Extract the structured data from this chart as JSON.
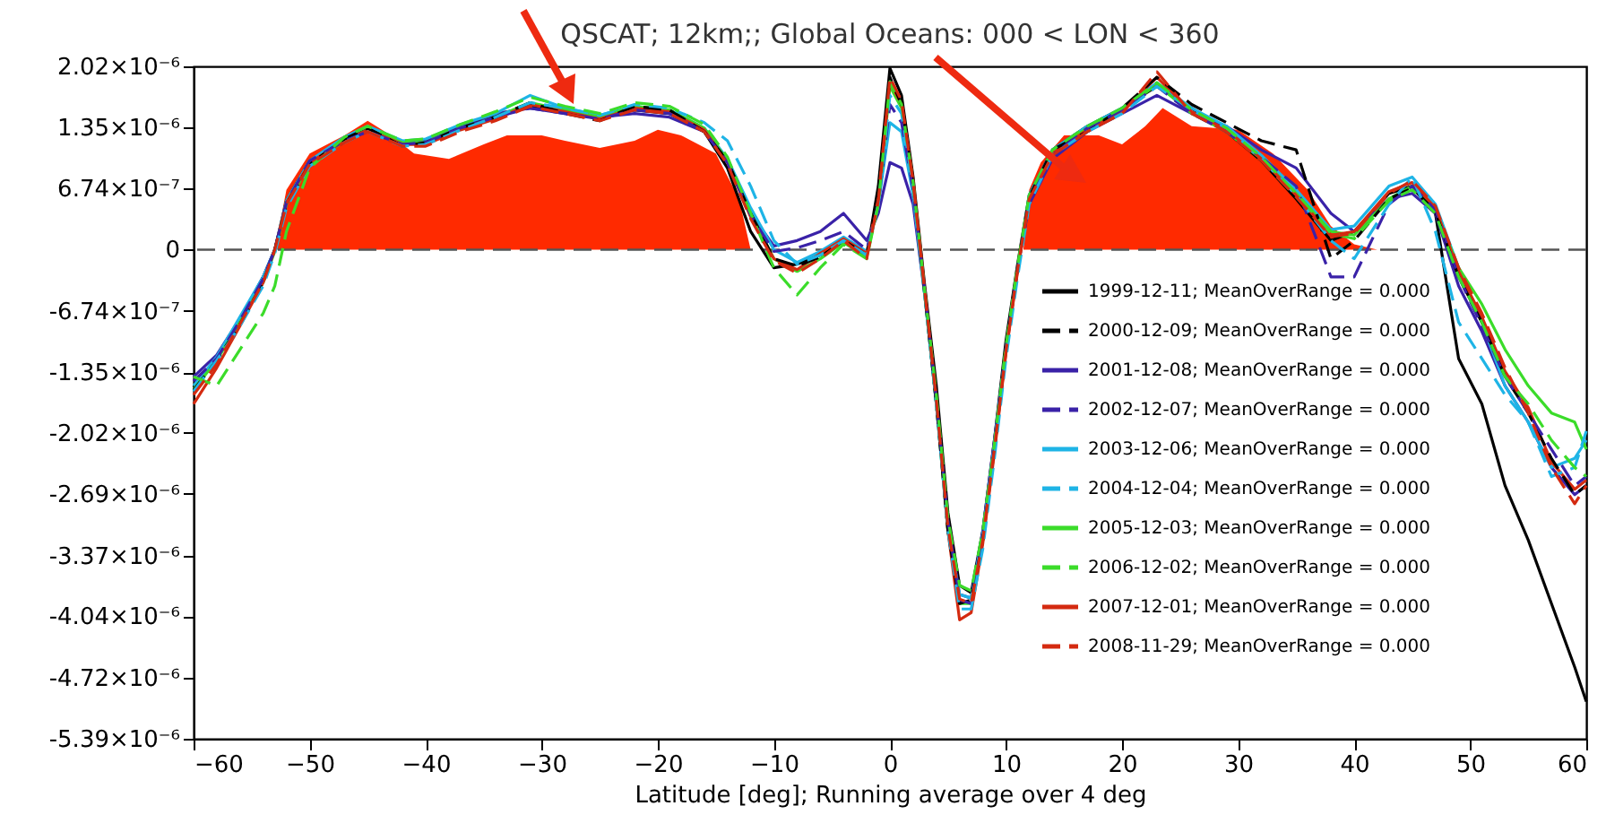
{
  "chart_data": {
    "type": "line",
    "title": "QSCAT; 12km;;  Global Oceans: 000 < LON < 360",
    "xlabel": "Latitude [deg]; Running average over  4 deg",
    "xlim": [
      -60,
      60
    ],
    "xticks": [
      -60,
      -50,
      -40,
      -30,
      -20,
      -10,
      0,
      10,
      20,
      30,
      40,
      50,
      60
    ],
    "ylim": [
      -5.39e-06,
      2.02e-06
    ],
    "yticks": [
      {
        "value": -5.39e-06,
        "label": "-5.39×10⁻⁶"
      },
      {
        "value": -4.72e-06,
        "label": "-4.72×10⁻⁶"
      },
      {
        "value": -4.04e-06,
        "label": "-4.04×10⁻⁶"
      },
      {
        "value": -3.37e-06,
        "label": "-3.37×10⁻⁶"
      },
      {
        "value": -2.69e-06,
        "label": "-2.69×10⁻⁶"
      },
      {
        "value": -2.02e-06,
        "label": "-2.02×10⁻⁶"
      },
      {
        "value": -1.35e-06,
        "label": "-1.35×10⁻⁶"
      },
      {
        "value": -6.74e-07,
        "label": "-6.74×10⁻⁷"
      },
      {
        "value": 0,
        "label": "0"
      },
      {
        "value": 6.74e-07,
        "label": "6.74×10⁻⁷"
      },
      {
        "value": 1.35e-06,
        "label": "1.35×10⁻⁶"
      },
      {
        "value": 2.02e-06,
        "label": "2.02×10⁻⁶"
      }
    ],
    "grid": false,
    "legend": "right",
    "ref_lines": [
      {
        "axis": "y",
        "value": 0,
        "color": "#555555",
        "line_style": "dashed"
      }
    ],
    "x": [
      -60,
      -58,
      -56,
      -54,
      -53,
      -52,
      -50,
      -47,
      -45,
      -42,
      -40,
      -37,
      -34,
      -31,
      -28,
      -25,
      -22,
      -19,
      -16,
      -14,
      -12,
      -10,
      -8,
      -6,
      -4,
      -2,
      -1,
      0,
      1,
      2,
      3,
      4,
      5,
      6,
      7,
      8,
      9,
      10,
      11,
      12,
      14,
      17,
      20,
      23,
      26,
      29,
      32,
      35,
      38,
      40,
      43,
      45,
      47,
      49,
      51,
      53,
      55,
      57,
      59,
      60
    ],
    "series": [
      {
        "type": "area",
        "color": "#ff2a00",
        "x": [
          -53,
          -52,
          -50,
          -47,
          -45,
          -43,
          -41,
          -38,
          -35,
          -33,
          -30,
          -28,
          -25,
          -22,
          -20,
          -18,
          -15,
          -13,
          -12
        ],
        "values": [
          0,
          6.6e-07,
          1.06e-06,
          1.26e-06,
          1.42e-06,
          1.26e-06,
          1.06e-06,
          1e-06,
          1.16e-06,
          1.26e-06,
          1.26e-06,
          1.2e-06,
          1.12e-06,
          1.2e-06,
          1.32e-06,
          1.26e-06,
          1.06e-06,
          5.6e-07,
          0
        ]
      },
      {
        "type": "area",
        "color": "#ff2a00",
        "x": [
          11.5,
          12,
          13,
          15,
          18,
          20,
          22,
          23.5,
          26,
          30,
          33,
          36,
          38,
          40,
          42
        ],
        "values": [
          0,
          6.6e-07,
          9.6e-07,
          1.26e-06,
          1.26e-06,
          1.16e-06,
          1.36e-06,
          1.56e-06,
          1.36e-06,
          1.32e-06,
          1.06e-06,
          6.6e-07,
          2.6e-07,
          6e-08,
          0
        ]
      },
      {
        "name": "1999-12-11; MeanOverRange =  0.000",
        "color": "#000000",
        "line_style": "solid",
        "values": [
          -1.52e-06,
          -1.2e-06,
          -7.8e-07,
          -3e-07,
          0,
          5.4e-07,
          9.8e-07,
          1.22e-06,
          1.34e-06,
          1.18e-06,
          1.2e-06,
          1.36e-06,
          1.48e-06,
          1.58e-06,
          1.54e-06,
          1.46e-06,
          1.54e-06,
          1.5e-06,
          1.3e-06,
          9e-07,
          2e-07,
          -2e-07,
          -1.6e-07,
          -6e-08,
          8e-08,
          -6e-08,
          7e-07,
          2e-06,
          1.7e-06,
          8e-07,
          -4e-07,
          -1.5e-06,
          -2.9e-06,
          -3.7e-06,
          -3.78e-06,
          -3.1e-06,
          -2.1e-06,
          -1e-06,
          -1.6e-07,
          6e-07,
          1.1e-06,
          1.36e-06,
          1.56e-06,
          1.8e-06,
          1.56e-06,
          1.3e-06,
          9.8e-07,
          5.6e-07,
          1e-07,
          2e-07,
          6.2e-07,
          7e-07,
          4e-07,
          -1.2e-06,
          -1.7e-06,
          -2.6e-06,
          -3.2e-06,
          -3.9e-06,
          -4.6e-06,
          -4.98e-06
        ]
      },
      {
        "name": "2000-12-09; MeanOverRange =  0.000",
        "color": "#000000",
        "line_style": "dashed",
        "values": [
          -1.55e-06,
          -1.22e-06,
          -8.2e-07,
          -3.6e-07,
          0,
          5e-07,
          9.4e-07,
          1.22e-06,
          1.34e-06,
          1.14e-06,
          1.18e-06,
          1.34e-06,
          1.46e-06,
          1.62e-06,
          1.5e-06,
          1.42e-06,
          1.58e-06,
          1.54e-06,
          1.3e-06,
          9.8e-07,
          4e-07,
          -1e-07,
          -1.8e-07,
          -8e-08,
          1e-07,
          -6e-08,
          6e-07,
          1.9e-06,
          1.6e-06,
          7.2e-07,
          -4.8e-07,
          -1.7e-06,
          -3.1e-06,
          -3.9e-06,
          -3.86e-06,
          -3.2e-06,
          -2.2e-06,
          -1.1e-06,
          -2e-07,
          5.8e-07,
          1.1e-06,
          1.3e-06,
          1.56e-06,
          1.9e-06,
          1.6e-06,
          1.4e-06,
          1.2e-06,
          1.1e-06,
          -1e-07,
          1e-07,
          5.6e-07,
          6.8e-07,
          4.2e-07,
          -3e-07,
          -8e-07,
          -1.4e-06,
          -1.8e-06,
          -2.3e-06,
          -2.7e-06,
          -2.6e-06
        ]
      },
      {
        "name": "2001-12-08; MeanOverRange =  0.000",
        "color": "#3a22a8",
        "line_style": "solid",
        "values": [
          -1.4e-06,
          -1.16e-06,
          -7.6e-07,
          -3e-07,
          0,
          5e-07,
          9.6e-07,
          1.22e-06,
          1.3e-06,
          1.18e-06,
          1.2e-06,
          1.36e-06,
          1.5e-06,
          1.56e-06,
          1.5e-06,
          1.46e-06,
          1.5e-06,
          1.46e-06,
          1.3e-06,
          9.8e-07,
          4e-07,
          4e-08,
          1e-07,
          2e-07,
          4e-07,
          1e-07,
          4e-07,
          9.6e-07,
          9e-07,
          5e-07,
          -5e-07,
          -1.7e-06,
          -3e-06,
          -3.8e-06,
          -3.84e-06,
          -3.1e-06,
          -2.1e-06,
          -1.1e-06,
          -2e-07,
          5e-07,
          1e-06,
          1.3e-06,
          1.5e-06,
          1.7e-06,
          1.5e-06,
          1.36e-06,
          1.1e-06,
          9e-07,
          4e-07,
          2e-07,
          5.6e-07,
          6.2e-07,
          4e-07,
          -4e-07,
          -9e-07,
          -1.5e-06,
          -1.9e-06,
          -2.4e-06,
          -2.7e-06,
          -2.6e-06
        ]
      },
      {
        "name": "2002-12-07; MeanOverRange =  0.000",
        "color": "#3a22a8",
        "line_style": "dashed",
        "values": [
          -1.45e-06,
          -1.2e-06,
          -7.8e-07,
          -3.2e-07,
          0,
          5.2e-07,
          9.8e-07,
          1.2e-06,
          1.3e-06,
          1.16e-06,
          1.18e-06,
          1.34e-06,
          1.46e-06,
          1.56e-06,
          1.5e-06,
          1.44e-06,
          1.54e-06,
          1.5e-06,
          1.3e-06,
          9.6e-07,
          3.8e-07,
          -2e-08,
          2e-08,
          1e-07,
          2e-07,
          0,
          5e-07,
          1.6e-06,
          1.4e-06,
          6.6e-07,
          -4.6e-07,
          -1.66e-06,
          -3e-06,
          -3.86e-06,
          -3.9e-06,
          -3.2e-06,
          -2.2e-06,
          -1.1e-06,
          -2.2e-07,
          5.4e-07,
          1.04e-06,
          1.34e-06,
          1.54e-06,
          1.8e-06,
          1.5e-06,
          1.3e-06,
          1.02e-06,
          7e-07,
          -3e-07,
          -3e-07,
          5e-07,
          7e-07,
          4.4e-07,
          -3e-07,
          -8.4e-07,
          -1.4e-06,
          -1.8e-06,
          -2.2e-06,
          -2.6e-06,
          -2.5e-06
        ]
      },
      {
        "name": "2003-12-06; MeanOverRange =  0.000",
        "color": "#1eb4e6",
        "line_style": "solid",
        "values": [
          -1.5e-06,
          -1.18e-06,
          -7.4e-07,
          -3e-07,
          0,
          5.4e-07,
          9.8e-07,
          1.24e-06,
          1.36e-06,
          1.2e-06,
          1.22e-06,
          1.38e-06,
          1.5e-06,
          1.7e-06,
          1.56e-06,
          1.48e-06,
          1.58e-06,
          1.54e-06,
          1.34e-06,
          1e-06,
          4.6e-07,
          0,
          -1.4e-07,
          -2e-08,
          1.4e-07,
          -2e-08,
          5e-07,
          1.4e-06,
          1.3e-06,
          6e-07,
          -5e-07,
          -1.7e-06,
          -3.1e-06,
          -3.8e-06,
          -3.84e-06,
          -3.14e-06,
          -2.14e-06,
          -1.08e-06,
          -2e-07,
          6e-07,
          1.1e-06,
          1.36e-06,
          1.56e-06,
          1.84e-06,
          1.56e-06,
          1.36e-06,
          1.04e-06,
          6.6e-07,
          2.2e-07,
          2.6e-07,
          7e-07,
          8e-07,
          5e-07,
          -2e-07,
          -8e-07,
          -1.5e-06,
          -1.9e-06,
          -2.4e-06,
          -2.3e-06,
          -2.1e-06
        ]
      },
      {
        "name": "2004-12-04; MeanOverRange =  0.000",
        "color": "#1eb4e6",
        "line_style": "dashed",
        "values": [
          -1.56e-06,
          -1.22e-06,
          -8.4e-07,
          -4e-07,
          -4e-08,
          4.6e-07,
          9.2e-07,
          1.18e-06,
          1.3e-06,
          1.14e-06,
          1.16e-06,
          1.32e-06,
          1.46e-06,
          1.62e-06,
          1.56e-06,
          1.48e-06,
          1.6e-06,
          1.56e-06,
          1.4e-06,
          1.2e-06,
          7e-07,
          1e-07,
          -1.6e-07,
          -6e-08,
          1e-07,
          -6e-08,
          5e-07,
          1.7e-06,
          1.5e-06,
          7e-07,
          -5e-07,
          -1.7e-06,
          -3.1e-06,
          -3.96e-06,
          -3.96e-06,
          -3.3e-06,
          -2.3e-06,
          -1.2e-06,
          -3e-07,
          5e-07,
          1.04e-06,
          1.3e-06,
          1.5e-06,
          1.8e-06,
          1.54e-06,
          1.34e-06,
          1e-06,
          6e-07,
          1e-07,
          -1e-07,
          5e-07,
          8e-07,
          2e-07,
          -8e-07,
          -1.2e-06,
          -1.6e-06,
          -1.9e-06,
          -2.5e-06,
          -2.4e-06,
          -2e-06
        ]
      },
      {
        "name": "2005-12-03; MeanOverRange =  0.000",
        "color": "#3bdc2a",
        "line_style": "solid",
        "values": [
          -1.54e-06,
          -1.22e-06,
          -8e-07,
          -3.6e-07,
          -2e-08,
          5e-07,
          9.4e-07,
          1.2e-06,
          1.32e-06,
          1.18e-06,
          1.18e-06,
          1.34e-06,
          1.46e-06,
          1.62e-06,
          1.54e-06,
          1.46e-06,
          1.58e-06,
          1.54e-06,
          1.34e-06,
          9.8e-07,
          4e-07,
          -1e-07,
          -2.4e-07,
          -1e-07,
          8e-08,
          -8e-08,
          5.2e-07,
          1.8e-06,
          1.56e-06,
          7e-07,
          -5e-07,
          -1.7e-06,
          -3.1e-06,
          -3.9e-06,
          -3.9e-06,
          -3.2e-06,
          -2.2e-06,
          -1.1e-06,
          -2e-07,
          5.8e-07,
          1.08e-06,
          1.34e-06,
          1.54e-06,
          1.82e-06,
          1.5e-06,
          1.3e-06,
          1e-06,
          6.2e-07,
          2e-07,
          1.6e-07,
          5.6e-07,
          7e-07,
          4.4e-07,
          -2e-07,
          -6e-07,
          -1.1e-06,
          -1.5e-06,
          -1.8e-06,
          -1.9e-06,
          -2.2e-06
        ]
      },
      {
        "name": "2006-12-02; MeanOverRange =  0.000",
        "color": "#3bdc2a",
        "line_style": "dashed",
        "values": [
          -1.4e-06,
          -1.5e-06,
          -1.1e-06,
          -7e-07,
          -4e-07,
          2e-07,
          9e-07,
          1.24e-06,
          1.36e-06,
          1.2e-06,
          1.22e-06,
          1.38e-06,
          1.52e-06,
          1.68e-06,
          1.58e-06,
          1.5e-06,
          1.62e-06,
          1.58e-06,
          1.38e-06,
          1.02e-06,
          4e-07,
          -2e-07,
          -5e-07,
          -2e-07,
          6e-08,
          -1e-07,
          5e-07,
          1.85e-06,
          1.6e-06,
          7.4e-07,
          -4.6e-07,
          -1.6e-06,
          -2.96e-06,
          -3.7e-06,
          -3.76e-06,
          -3.1e-06,
          -2.14e-06,
          -1.06e-06,
          -1.8e-07,
          6e-07,
          1.1e-06,
          1.36e-06,
          1.56e-06,
          1.84e-06,
          1.54e-06,
          1.34e-06,
          1.02e-06,
          6.2e-07,
          1.8e-07,
          1.2e-07,
          5.4e-07,
          6.6e-07,
          4e-07,
          -3e-07,
          -8e-07,
          -1.4e-06,
          -1.7e-06,
          -2.1e-06,
          -2.4e-06,
          -2.5e-06
        ]
      },
      {
        "name": "2007-12-01; MeanOverRange =  0.000",
        "color": "#d42a10",
        "line_style": "solid",
        "values": [
          -1.7e-06,
          -1.3e-06,
          -8.4e-07,
          -3.6e-07,
          0,
          5.2e-07,
          9.6e-07,
          1.2e-06,
          1.32e-06,
          1.16e-06,
          1.16e-06,
          1.32e-06,
          1.44e-06,
          1.6e-06,
          1.52e-06,
          1.44e-06,
          1.56e-06,
          1.52e-06,
          1.32e-06,
          9.6e-07,
          3.6e-07,
          -1e-07,
          -2.2e-07,
          -4e-08,
          1.2e-07,
          -4e-08,
          5.6e-07,
          1.85e-06,
          1.6e-06,
          7.6e-07,
          -4.4e-07,
          -1.64e-06,
          -3.1e-06,
          -4.08e-06,
          -4e-06,
          -3.24e-06,
          -2.24e-06,
          -1.14e-06,
          -2.4e-07,
          5.6e-07,
          1.06e-06,
          1.32e-06,
          1.52e-06,
          1.9e-06,
          1.52e-06,
          1.32e-06,
          1e-06,
          6e-07,
          1.6e-07,
          2e-07,
          6.4e-07,
          7.4e-07,
          4.6e-07,
          -2.4e-07,
          -7.4e-07,
          -1.34e-06,
          -1.74e-06,
          -2.34e-06,
          -2.64e-06,
          -2.54e-06
        ]
      },
      {
        "name": "2008-11-29; MeanOverRange =  0.000",
        "color": "#d42a10",
        "line_style": "dashed",
        "values": [
          -1.6e-06,
          -1.26e-06,
          -8.2e-07,
          -3.6e-07,
          0,
          5e-07,
          9.4e-07,
          1.18e-06,
          1.3e-06,
          1.14e-06,
          1.14e-06,
          1.3e-06,
          1.42e-06,
          1.58e-06,
          1.5e-06,
          1.42e-06,
          1.54e-06,
          1.5e-06,
          1.3e-06,
          9.4e-07,
          3.4e-07,
          -1.2e-07,
          -2.6e-07,
          -1e-07,
          1e-07,
          -1e-07,
          5.4e-07,
          1.9e-06,
          1.64e-06,
          7.4e-07,
          -4.6e-07,
          -1.66e-06,
          -3.06e-06,
          -3.85e-06,
          -3.9e-06,
          -3.2e-06,
          -2.2e-06,
          -1.12e-06,
          -2.2e-07,
          5.6e-07,
          1.04e-06,
          1.3e-06,
          1.5e-06,
          1.96e-06,
          1.5e-06,
          1.3e-06,
          9.8e-07,
          5.8e-07,
          1.4e-07,
          1.8e-07,
          6.2e-07,
          7.6e-07,
          4.8e-07,
          -2e-07,
          -7e-07,
          -1.3e-06,
          -1.8e-06,
          -2.4e-06,
          -2.8e-06,
          -2.6e-06
        ]
      }
    ]
  }
}
